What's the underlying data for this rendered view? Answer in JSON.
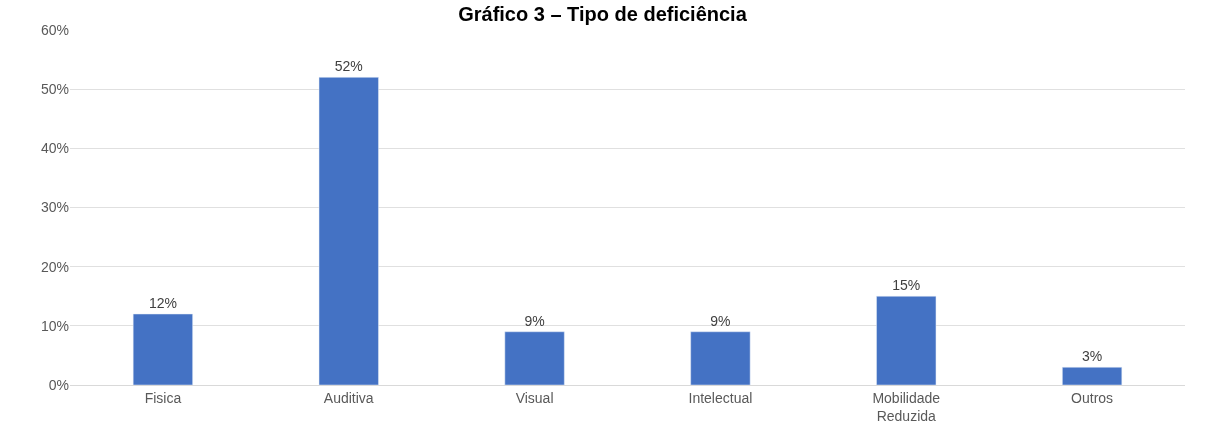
{
  "chart_data": {
    "type": "bar",
    "title": "Gráfico 3 – Tipo de deficiência",
    "categories": [
      "Fisica",
      "Auditiva",
      "Visual",
      "Intelectual",
      "Mobilidade Reduzida",
      "Outros"
    ],
    "values": [
      12,
      52,
      9,
      9,
      15,
      3
    ],
    "value_labels": [
      "12%",
      "52%",
      "9%",
      "9%",
      "15%",
      "3%"
    ],
    "color": "#4472c4",
    "ylim": [
      0,
      60
    ],
    "yticks": [
      {
        "value": 0,
        "label": "0%"
      },
      {
        "value": 10,
        "label": "10%"
      },
      {
        "value": 20,
        "label": "20%"
      },
      {
        "value": 30,
        "label": "30%"
      },
      {
        "value": 40,
        "label": "40%"
      },
      {
        "value": 50,
        "label": "50%"
      },
      {
        "value": 60,
        "label": "60%"
      }
    ],
    "grid": "y"
  }
}
